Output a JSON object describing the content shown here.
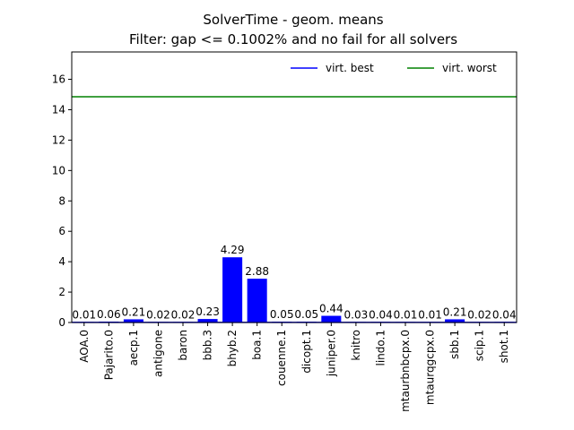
{
  "chart_data": {
    "type": "bar",
    "title_line1": "SolverTime - geom. means",
    "title_line2": "Filter: gap <= 0.1002% and no fail for all solvers",
    "xlabel": "",
    "ylabel": "",
    "ylim": [
      0,
      17.8
    ],
    "yticks": [
      "0",
      "2",
      "4",
      "6",
      "8",
      "10",
      "12",
      "14",
      "16"
    ],
    "categories": [
      "AOA.0",
      "Pajarito.0",
      "aecp.1",
      "antigone",
      "baron",
      "bbb.3",
      "bhyb.2",
      "boa.1",
      "couenne.1",
      "dicopt.1",
      "juniper.0",
      "knitro",
      "lindo.1",
      "mtaurbnbcpx.0",
      "mtaurqgcpx.0",
      "sbb.1",
      "scip.1",
      "shot.1"
    ],
    "values": [
      0.01,
      0.06,
      0.21,
      0.02,
      0.02,
      0.23,
      4.29,
      2.88,
      0.05,
      0.05,
      0.44,
      0.03,
      0.04,
      0.01,
      0.01,
      0.21,
      0.02,
      0.04
    ],
    "value_labels": [
      "0.01",
      "0.06",
      "0.21",
      "0.02",
      "0.02",
      "0.23",
      "4.29",
      "2.88",
      "0.05",
      "0.05",
      "0.44",
      "0.03",
      "0.04",
      "0.01",
      "0.01",
      "0.21",
      "0.02",
      "0.04"
    ],
    "bar_color": "#0000ff",
    "reference_lines": [
      {
        "name": "virt. best",
        "value": 0.01,
        "color": "#0000ff"
      },
      {
        "name": "virt. worst",
        "value": 14.85,
        "color": "#008000"
      }
    ],
    "legend_position": "top-right",
    "grid": false
  }
}
